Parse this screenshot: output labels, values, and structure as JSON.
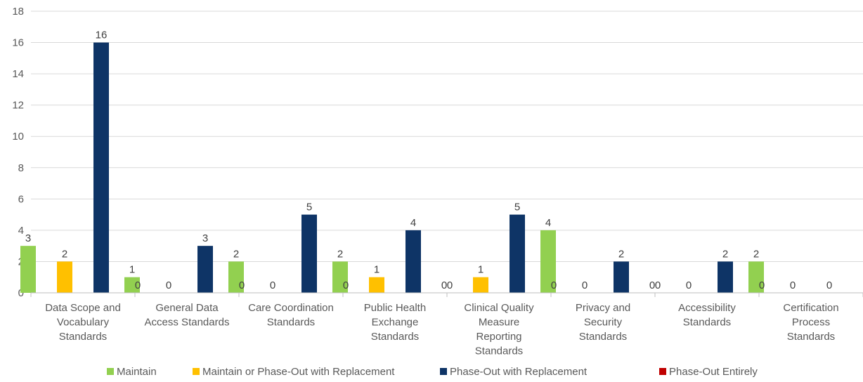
{
  "chart_data": {
    "type": "bar",
    "title": "",
    "xlabel": "",
    "ylabel": "",
    "ylim": [
      0,
      18
    ],
    "yticks": [
      0,
      2,
      4,
      6,
      8,
      10,
      12,
      14,
      16,
      18
    ],
    "grid": true,
    "legend_position": "bottom",
    "categories": [
      "Data Scope and Vocabulary Standards",
      "General Data Access Standards",
      "Care Coordination Standards",
      "Public Health Exchange Standards",
      "Clinical Quality Measure Reporting Standards",
      "Privacy and Security Standards",
      "Accessibility Standards",
      "Certification Process Standards"
    ],
    "category_lines": [
      [
        "Data Scope and",
        "Vocabulary",
        "Standards"
      ],
      [
        "General Data",
        "Access Standards"
      ],
      [
        "Care Coordination",
        "Standards"
      ],
      [
        "Public Health",
        "Exchange",
        "Standards"
      ],
      [
        "Clinical Quality",
        "Measure",
        "Reporting",
        "Standards"
      ],
      [
        "Privacy and",
        "Security",
        "Standards"
      ],
      [
        "Accessibility",
        "Standards"
      ],
      [
        "Certification",
        "Process",
        "Standards"
      ]
    ],
    "series": [
      {
        "name": "Maintain",
        "color": "#92d050",
        "values": [
          3,
          1,
          2,
          2,
          0,
          4,
          0,
          2
        ]
      },
      {
        "name": "Maintain or Phase-Out with Replacement",
        "color": "#ffc000",
        "values": [
          2,
          0,
          0,
          1,
          1,
          0,
          0,
          0
        ]
      },
      {
        "name": "Phase-Out with Replacement",
        "color": "#0e3466",
        "values": [
          16,
          3,
          5,
          4,
          5,
          2,
          2,
          0
        ]
      },
      {
        "name": "Phase-Out Entirely",
        "color": "#c00000",
        "values": [
          0,
          0,
          0,
          0,
          0,
          0,
          0,
          0
        ]
      }
    ]
  }
}
